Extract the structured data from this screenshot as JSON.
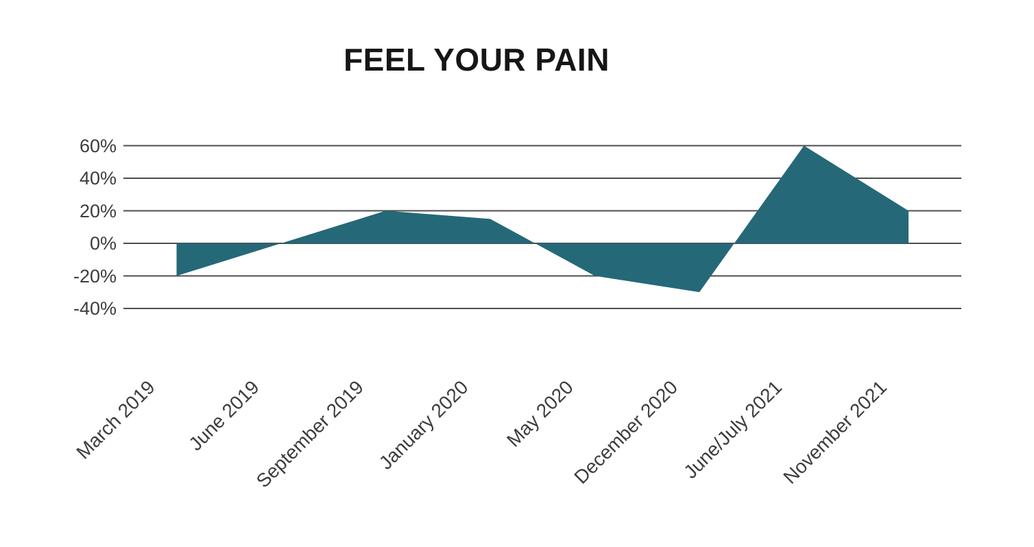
{
  "chart_data": {
    "type": "area",
    "title": "FEEL YOUR PAIN",
    "categories": [
      "March 2019",
      "June 2019",
      "September 2019",
      "January 2020",
      "May 2020",
      "December 2020",
      "June/July 2021",
      "November 2021"
    ],
    "values": [
      -20,
      0,
      20,
      15,
      -20,
      -30,
      60,
      20
    ],
    "unit": "%",
    "yticks": [
      60,
      40,
      20,
      0,
      -20,
      -40
    ],
    "ytick_labels": [
      "60%",
      "40%",
      "20%",
      "0%",
      "-20%",
      "-40%"
    ],
    "ylim": [
      -40,
      60
    ],
    "baseline": 0,
    "xlabel": "",
    "ylabel": "",
    "grid": "horizontal",
    "legend": "none",
    "x_label_rotation_deg": -45,
    "area_color": "#256878",
    "gridline_color": "#4d4d4d",
    "tick_label_color": "#3d3d3d",
    "title_color": "#161616",
    "background_color": "#ffffff"
  }
}
